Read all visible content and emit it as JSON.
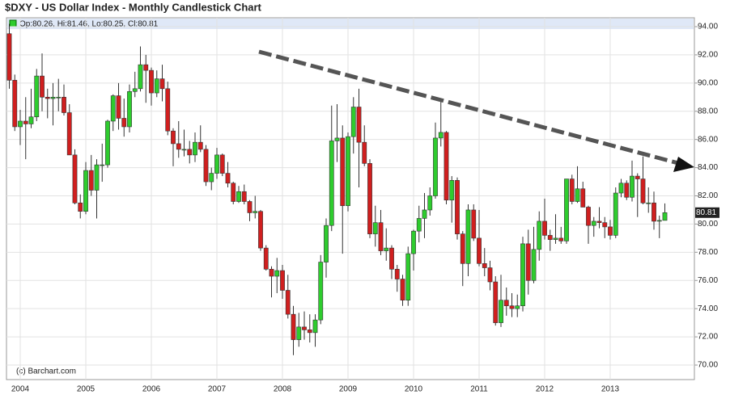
{
  "chart_data": {
    "type": "candlestick",
    "title": "$DXY - US Dollar Index - Monthly Candlestick Chart",
    "legend": "Op:80.26, Hi:81.46, Lo:80.25, Cl:80.81",
    "last_label": "80.81",
    "copyright": "(c) Barchart.com",
    "up_color": "#2ecc2e",
    "down_color": "#d01f1f",
    "grid": true,
    "categories": [
      null,
      null,
      "2004",
      null,
      null,
      null,
      null,
      null,
      null,
      null,
      null,
      null,
      null,
      null,
      "2005",
      null,
      null,
      null,
      null,
      null,
      null,
      null,
      null,
      null,
      null,
      null,
      "2006",
      null,
      null,
      null,
      null,
      null,
      null,
      null,
      null,
      null,
      null,
      null,
      "2007",
      null,
      null,
      null,
      null,
      null,
      null,
      null,
      null,
      null,
      null,
      null,
      "2008",
      null,
      null,
      null,
      null,
      null,
      null,
      null,
      null,
      null,
      null,
      null,
      "2009",
      null,
      null,
      null,
      null,
      null,
      null,
      null,
      null,
      null,
      null,
      null,
      "2010",
      null,
      null,
      null,
      null,
      null,
      null,
      null,
      null,
      null,
      null,
      null,
      "2011",
      null,
      null,
      null,
      null,
      null,
      null,
      null,
      null,
      null,
      null,
      null,
      "2012",
      null,
      null,
      null,
      null,
      null,
      null,
      null,
      null,
      null,
      null,
      null,
      "2013",
      null,
      null,
      null,
      null,
      null,
      null,
      null,
      null,
      null,
      null
    ],
    "open": [
      93.5,
      90.2,
      86.9,
      87.3,
      87.1,
      87.6,
      90.5,
      89.0,
      88.9,
      89.0,
      89.0,
      87.9,
      84.9,
      81.5,
      80.9,
      83.8,
      82.4,
      84.2,
      84.2,
      87.3,
      89.1,
      87.5,
      86.9,
      89.4,
      89.6,
      91.3,
      90.9,
      89.3,
      90.3,
      89.6,
      86.6,
      85.7,
      85.3,
      85.3,
      84.9,
      85.8,
      85.3,
      83.0,
      83.6,
      84.9,
      83.6,
      82.9,
      81.6,
      82.3,
      81.6,
      80.8,
      80.9,
      78.3,
      76.8,
      76.3,
      76.7,
      75.3,
      73.6,
      71.8,
      72.7,
      72.5,
      72.3,
      73.2,
      77.3,
      79.9,
      85.9,
      86.1,
      81.3,
      86.2,
      88.3,
      85.8,
      84.3,
      79.3,
      80.1,
      78.1,
      78.3,
      76.8,
      76.1,
      74.6,
      77.9,
      79.5,
      80.4,
      81.0,
      82.0,
      86.1,
      86.5,
      81.7,
      83.1,
      79.3,
      77.2,
      81.0,
      79.0,
      77.2,
      76.9,
      75.9,
      73.0,
      74.6,
      74.2,
      74.0,
      74.2,
      78.6,
      76.0,
      78.2,
      80.2,
      79.2,
      78.9,
      79.0,
      78.8,
      83.2,
      81.6,
      82.5,
      81.2,
      79.9,
      80.2,
      80.1,
      79.8,
      79.2,
      82.2,
      82.9,
      81.9,
      83.4,
      83.2,
      81.5,
      81.5,
      80.2,
      80.26
    ],
    "high": [
      94.2,
      90.6,
      88.1,
      89.0,
      89.6,
      91.0,
      92.1,
      89.6,
      90.0,
      90.3,
      89.9,
      88.5,
      85.3,
      82.1,
      84.4,
      84.9,
      84.6,
      85.7,
      87.4,
      89.2,
      90.0,
      88.9,
      89.9,
      90.8,
      92.6,
      92.0,
      91.1,
      90.9,
      91.3,
      90.1,
      86.8,
      87.3,
      86.7,
      85.9,
      86.5,
      87.0,
      85.6,
      84.0,
      85.4,
      85.0,
      84.4,
      83.0,
      82.7,
      82.8,
      81.7,
      82.0,
      81.0,
      78.5,
      77.0,
      77.6,
      77.1,
      76.4,
      74.2,
      73.7,
      73.8,
      73.6,
      73.6,
      77.8,
      80.4,
      88.4,
      88.5,
      87.0,
      86.5,
      89.0,
      89.6,
      87.0,
      84.6,
      81.3,
      81.0,
      79.7,
      78.5,
      77.1,
      76.4,
      78.4,
      79.6,
      81.3,
      82.2,
      82.6,
      87.2,
      88.7,
      86.6,
      83.4,
      83.3,
      79.5,
      81.4,
      81.4,
      81.0,
      78.3,
      77.4,
      76.3,
      76.4,
      75.5,
      75.1,
      75.0,
      79.1,
      79.6,
      79.8,
      80.9,
      81.8,
      79.6,
      80.7,
      79.8,
      83.1,
      83.5,
      84.1,
      83.0,
      81.3,
      80.5,
      81.2,
      80.5,
      80.3,
      82.6,
      83.2,
      83.1,
      84.5,
      83.6,
      84.8,
      82.6,
      82.3,
      80.6,
      81.46
    ],
    "low": [
      89.6,
      86.6,
      85.6,
      84.6,
      86.8,
      87.3,
      88.0,
      87.5,
      87.0,
      88.0,
      87.7,
      84.9,
      81.4,
      80.4,
      80.7,
      82.0,
      80.4,
      83.0,
      84.0,
      86.6,
      86.7,
      86.2,
      86.5,
      89.0,
      89.4,
      88.6,
      88.4,
      89.0,
      88.7,
      86.3,
      84.1,
      84.7,
      84.8,
      84.3,
      84.4,
      85.1,
      82.7,
      82.4,
      83.2,
      83.4,
      82.6,
      81.4,
      81.5,
      81.4,
      80.2,
      80.4,
      78.1,
      76.7,
      74.8,
      75.1,
      74.7,
      73.3,
      70.7,
      71.3,
      71.8,
      71.6,
      71.3,
      72.9,
      76.2,
      79.5,
      84.4,
      77.9,
      80.9,
      85.0,
      82.6,
      84.1,
      79.0,
      78.4,
      77.8,
      77.4,
      76.1,
      75.2,
      74.2,
      74.2,
      76.7,
      78.7,
      79.0,
      80.6,
      81.8,
      85.5,
      81.4,
      80.1,
      78.9,
      75.6,
      76.3,
      78.8,
      77.0,
      76.3,
      75.3,
      72.8,
      72.7,
      73.5,
      73.4,
      73.4,
      73.8,
      75.0,
      75.8,
      77.4,
      78.9,
      78.1,
      78.6,
      78.6,
      78.6,
      81.4,
      81.5,
      81.2,
      78.6,
      79.1,
      79.7,
      79.0,
      78.9,
      79.0,
      81.9,
      81.7,
      81.6,
      80.5,
      81.4,
      80.8,
      79.6,
      79.0,
      80.25
    ],
    "close": [
      90.2,
      86.9,
      87.3,
      87.1,
      87.6,
      90.5,
      89.0,
      88.9,
      89.0,
      89.0,
      87.9,
      84.9,
      81.5,
      80.9,
      83.8,
      82.4,
      84.2,
      84.2,
      87.3,
      89.1,
      87.5,
      86.9,
      89.4,
      89.6,
      91.3,
      90.9,
      89.3,
      90.3,
      89.6,
      86.6,
      85.7,
      85.3,
      85.3,
      84.9,
      85.8,
      85.3,
      83.0,
      83.6,
      84.9,
      83.6,
      82.9,
      81.6,
      82.3,
      81.6,
      80.8,
      80.9,
      78.3,
      76.8,
      76.3,
      76.7,
      75.3,
      73.6,
      71.8,
      72.7,
      72.5,
      72.3,
      73.2,
      77.3,
      79.9,
      85.9,
      86.1,
      81.3,
      86.2,
      88.3,
      85.8,
      84.3,
      79.3,
      80.1,
      78.1,
      78.3,
      76.8,
      76.1,
      74.6,
      77.9,
      79.5,
      80.4,
      81.0,
      82.0,
      86.1,
      86.5,
      81.7,
      83.1,
      79.3,
      77.2,
      81.0,
      79.0,
      77.2,
      76.9,
      75.9,
      73.0,
      74.6,
      74.2,
      74.0,
      74.2,
      78.6,
      76.0,
      78.2,
      80.2,
      79.2,
      78.9,
      79.0,
      78.8,
      83.2,
      81.6,
      82.5,
      81.2,
      79.9,
      80.2,
      80.1,
      79.8,
      79.2,
      82.2,
      82.9,
      81.9,
      83.4,
      83.2,
      81.5,
      81.5,
      80.2,
      80.26,
      80.81
    ],
    "ylim": [
      68.97,
      94.63
    ],
    "yticks": [
      {
        "value": 70,
        "label": "70.00"
      },
      {
        "value": 72,
        "label": "72.00"
      },
      {
        "value": 74,
        "label": "74.00"
      },
      {
        "value": 76,
        "label": "76.00"
      },
      {
        "value": 78,
        "label": "78.00"
      },
      {
        "value": 80,
        "label": "80.00"
      },
      {
        "value": 82,
        "label": "82.00"
      },
      {
        "value": 84,
        "label": "84.00"
      },
      {
        "value": 86,
        "label": "86.00"
      },
      {
        "value": 88,
        "label": "88.00"
      },
      {
        "value": 90,
        "label": "90.00"
      },
      {
        "value": 92,
        "label": "92.00"
      },
      {
        "value": 94,
        "label": "94.00"
      }
    ]
  }
}
